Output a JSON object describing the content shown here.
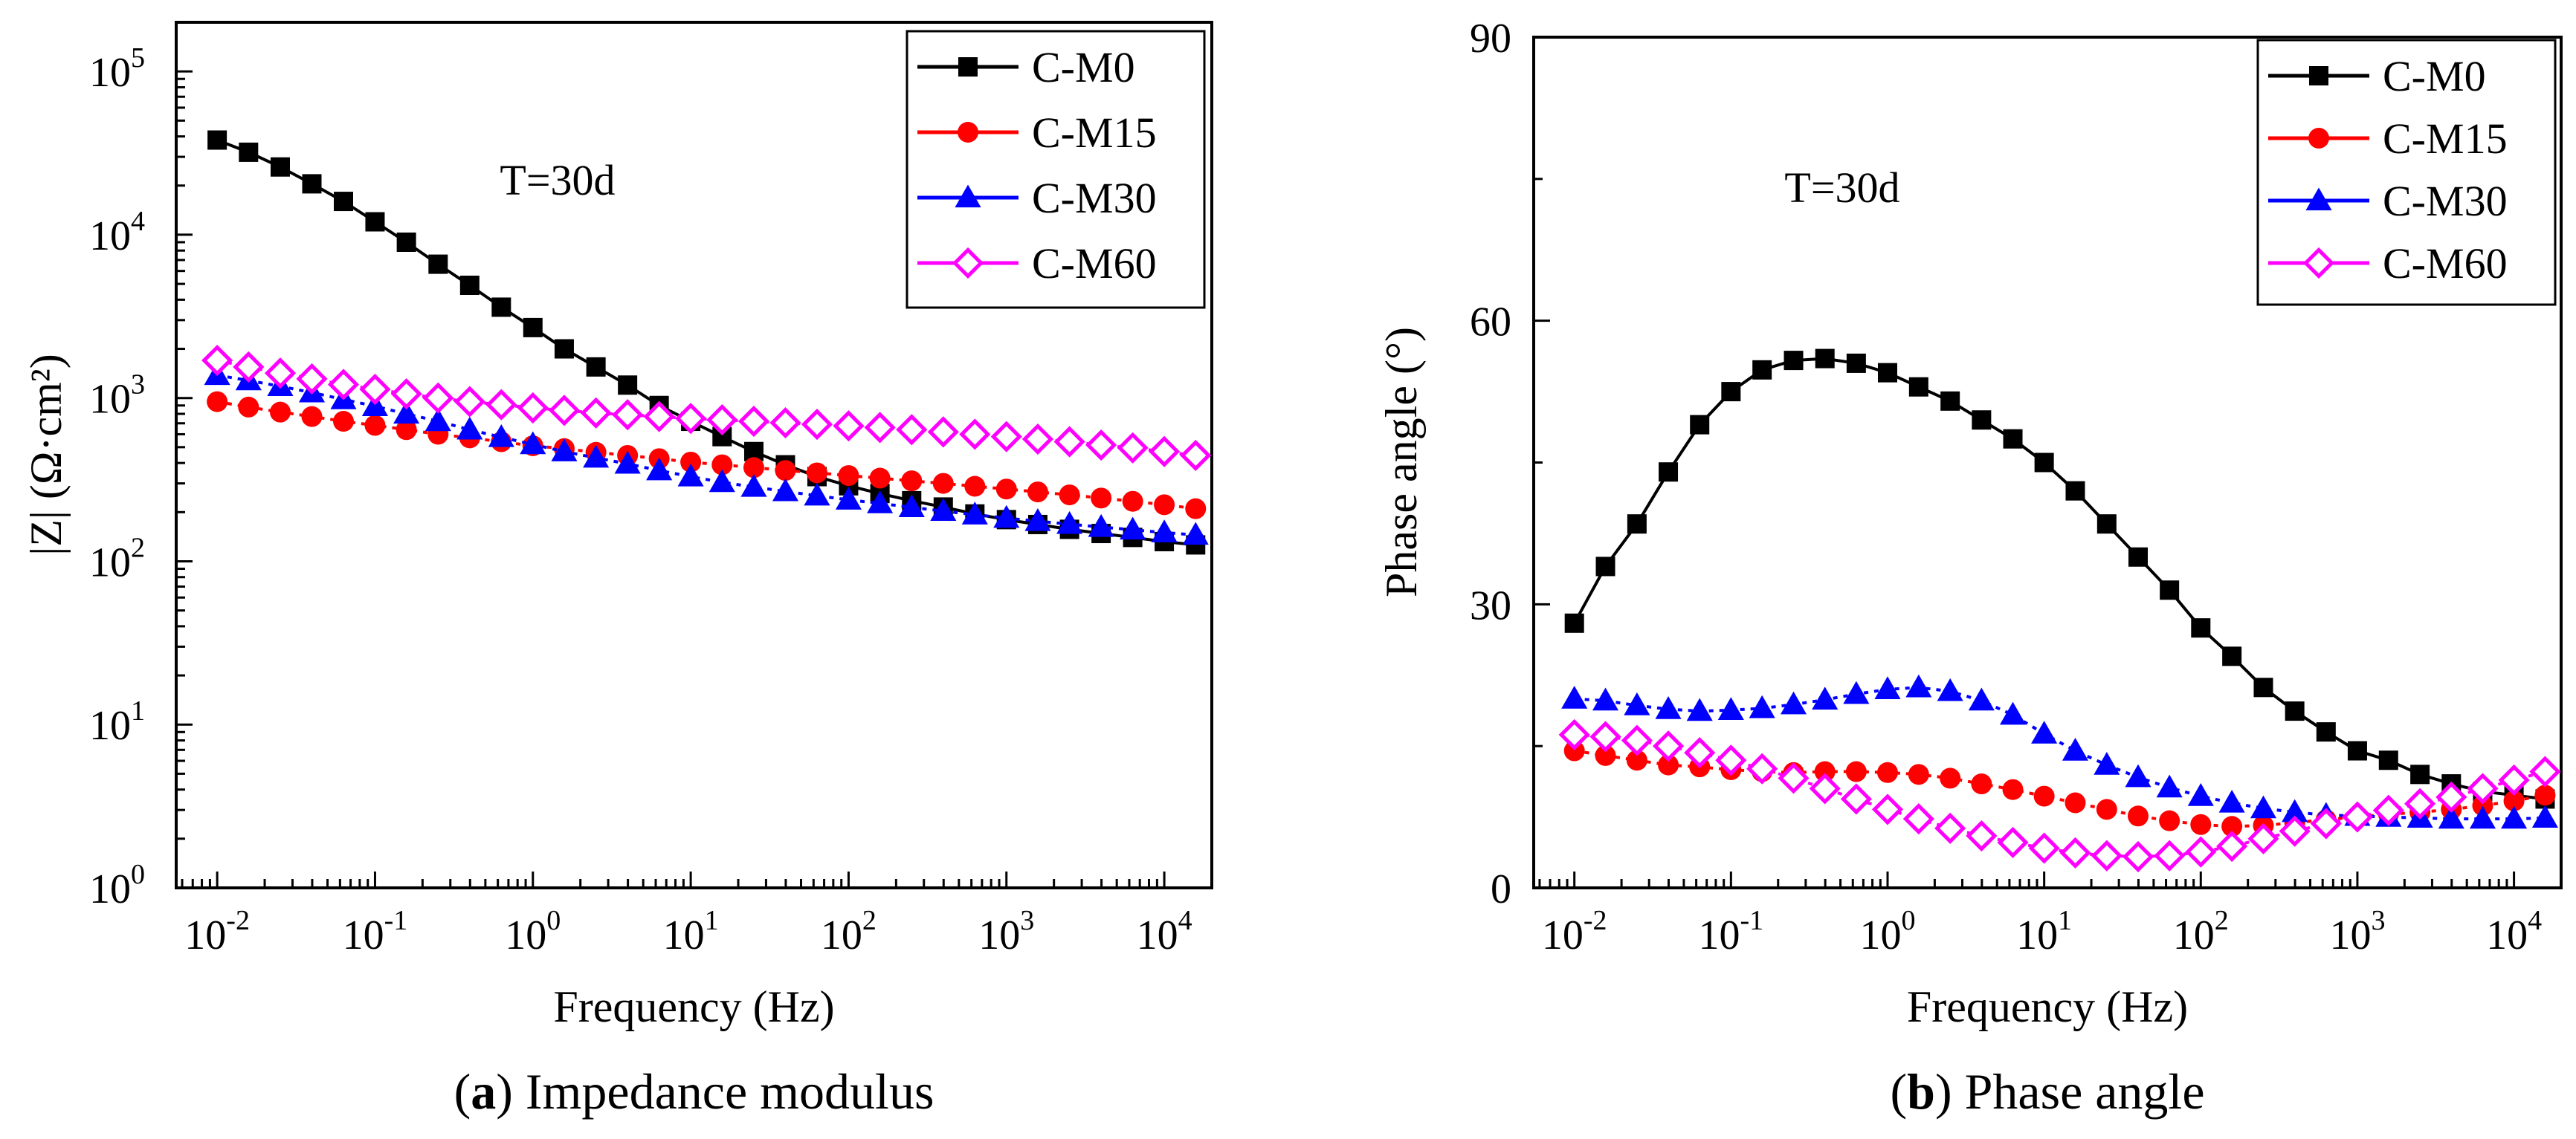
{
  "chart_data": [
    {
      "type": "line",
      "panel_id": "a",
      "caption_letter": "a",
      "caption_text": " Impedance modulus",
      "annotation": "T=30d",
      "xlabel": "Frequency (Hz)",
      "ylabel": "|Z| (Ω·cm²)",
      "x_scale": "log",
      "y_scale": "log",
      "xlim": [
        0.0055,
        20000
      ],
      "ylim": [
        1,
        200000
      ],
      "x_ticks": [
        {
          "value": 0.01,
          "base": "10",
          "exp": "-2"
        },
        {
          "value": 0.1,
          "base": "10",
          "exp": "-1"
        },
        {
          "value": 1,
          "base": "10",
          "exp": "0"
        },
        {
          "value": 10,
          "base": "10",
          "exp": "1"
        },
        {
          "value": 100,
          "base": "10",
          "exp": "2"
        },
        {
          "value": 1000,
          "base": "10",
          "exp": "3"
        },
        {
          "value": 10000,
          "base": "10",
          "exp": "4"
        }
      ],
      "y_ticks": [
        {
          "value": 1,
          "base": "10",
          "exp": "0"
        },
        {
          "value": 10,
          "base": "10",
          "exp": "1"
        },
        {
          "value": 100,
          "base": "10",
          "exp": "2"
        },
        {
          "value": 1000,
          "base": "10",
          "exp": "3"
        },
        {
          "value": 10000,
          "base": "10",
          "exp": "4"
        },
        {
          "value": 100000,
          "base": "10",
          "exp": "5"
        }
      ],
      "legend_position": "top-right",
      "series": [
        {
          "name": "C-M0",
          "color": "#000000",
          "marker": "square",
          "x": [
            0.01,
            0.0158,
            0.0251,
            0.0398,
            0.0631,
            0.1,
            0.158,
            0.251,
            0.398,
            0.631,
            1,
            1.58,
            2.51,
            3.98,
            6.31,
            10,
            15.8,
            25.1,
            39.8,
            63.1,
            100,
            158,
            251,
            398,
            631,
            1000,
            1580,
            2510,
            3980,
            6310,
            10000,
            15800
          ],
          "y": [
            38000,
            32000,
            26000,
            20500,
            16000,
            12000,
            9000,
            6600,
            4900,
            3600,
            2700,
            2000,
            1550,
            1200,
            900,
            720,
            580,
            470,
            390,
            330,
            290,
            260,
            235,
            215,
            195,
            180,
            168,
            157,
            148,
            140,
            132,
            126
          ]
        },
        {
          "name": "C-M15",
          "color": "#ff0000",
          "marker": "circle",
          "x": [
            0.01,
            0.0158,
            0.0251,
            0.0398,
            0.0631,
            0.1,
            0.158,
            0.251,
            0.398,
            0.631,
            1,
            1.58,
            2.51,
            3.98,
            6.31,
            10,
            15.8,
            25.1,
            39.8,
            63.1,
            100,
            158,
            251,
            398,
            631,
            1000,
            1580,
            2510,
            3980,
            6310,
            10000,
            15800
          ],
          "y": [
            950,
            880,
            820,
            770,
            720,
            680,
            640,
            600,
            570,
            540,
            510,
            490,
            465,
            445,
            425,
            405,
            390,
            375,
            360,
            348,
            335,
            323,
            311,
            300,
            288,
            277,
            266,
            255,
            244,
            233,
            222,
            210
          ]
        },
        {
          "name": "C-M30",
          "color": "#0000ff",
          "marker": "triangle",
          "x": [
            0.01,
            0.0158,
            0.0251,
            0.0398,
            0.0631,
            0.1,
            0.158,
            0.251,
            0.398,
            0.631,
            1,
            1.58,
            2.51,
            3.98,
            6.31,
            10,
            15.8,
            25.1,
            39.8,
            63.1,
            100,
            158,
            251,
            398,
            631,
            1000,
            1580,
            2510,
            3980,
            6310,
            10000,
            15800
          ],
          "y": [
            1380,
            1280,
            1180,
            1080,
            980,
            890,
            800,
            720,
            640,
            575,
            520,
            470,
            430,
            395,
            360,
            330,
            305,
            285,
            268,
            252,
            238,
            226,
            214,
            203,
            193,
            184,
            176,
            169,
            162,
            156,
            150,
            145
          ]
        },
        {
          "name": "C-M60",
          "color": "#ff00ff",
          "marker": "diamond",
          "x": [
            0.01,
            0.0158,
            0.0251,
            0.0398,
            0.0631,
            0.1,
            0.158,
            0.251,
            0.398,
            0.631,
            1,
            1.58,
            2.51,
            3.98,
            6.31,
            10,
            15.8,
            25.1,
            39.8,
            63.1,
            100,
            158,
            251,
            398,
            631,
            1000,
            1580,
            2510,
            3980,
            6310,
            10000,
            15800
          ],
          "y": [
            1700,
            1550,
            1420,
            1310,
            1210,
            1130,
            1060,
            1000,
            950,
            910,
            870,
            840,
            810,
            790,
            770,
            750,
            735,
            720,
            705,
            690,
            675,
            660,
            640,
            620,
            600,
            580,
            560,
            540,
            515,
            495,
            470,
            445
          ]
        }
      ]
    },
    {
      "type": "line",
      "panel_id": "b",
      "caption_letter": "b",
      "caption_text": " Phase angle",
      "annotation": "T=30d",
      "xlabel": "Frequency (Hz)",
      "ylabel": "Phase angle (°)",
      "x_scale": "log",
      "y_scale": "linear",
      "xlim": [
        0.0055,
        20000
      ],
      "ylim": [
        0,
        90
      ],
      "x_ticks": [
        {
          "value": 0.01,
          "base": "10",
          "exp": "-2"
        },
        {
          "value": 0.1,
          "base": "10",
          "exp": "-1"
        },
        {
          "value": 1,
          "base": "10",
          "exp": "0"
        },
        {
          "value": 10,
          "base": "10",
          "exp": "1"
        },
        {
          "value": 100,
          "base": "10",
          "exp": "2"
        },
        {
          "value": 1000,
          "base": "10",
          "exp": "3"
        },
        {
          "value": 10000,
          "base": "10",
          "exp": "4"
        }
      ],
      "y_ticks": [
        {
          "value": 0,
          "label": "0"
        },
        {
          "value": 30,
          "label": "30"
        },
        {
          "value": 60,
          "label": "60"
        },
        {
          "value": 90,
          "label": "90"
        }
      ],
      "legend_position": "top-right",
      "series": [
        {
          "name": "C-M0",
          "color": "#000000",
          "marker": "square",
          "x": [
            0.01,
            0.0158,
            0.0251,
            0.0398,
            0.0631,
            0.1,
            0.158,
            0.251,
            0.398,
            0.631,
            1,
            1.58,
            2.51,
            3.98,
            6.31,
            10,
            15.8,
            25.1,
            39.8,
            63.1,
            100,
            158,
            251,
            398,
            631,
            1000,
            1580,
            2510,
            3980,
            6310,
            10000,
            15800
          ],
          "y": [
            28,
            34,
            38.5,
            44,
            49,
            52.5,
            54.8,
            55.8,
            56,
            55.5,
            54.5,
            53,
            51.5,
            49.5,
            47.5,
            45,
            42,
            38.5,
            35,
            31.5,
            27.5,
            24.5,
            21.2,
            18.7,
            16.5,
            14.5,
            13.5,
            12,
            11,
            10.2,
            9.8,
            9.4
          ]
        },
        {
          "name": "C-M15",
          "color": "#ff0000",
          "marker": "circle",
          "x": [
            0.01,
            0.0158,
            0.0251,
            0.0398,
            0.0631,
            0.1,
            0.158,
            0.251,
            0.398,
            0.631,
            1,
            1.58,
            2.51,
            3.98,
            6.31,
            10,
            15.8,
            25.1,
            39.8,
            63.1,
            100,
            158,
            251,
            398,
            631,
            1000,
            1580,
            2510,
            3980,
            6310,
            10000,
            15800
          ],
          "y": [
            14.5,
            14,
            13.5,
            13,
            12.8,
            12.5,
            12.3,
            12.2,
            12.3,
            12.3,
            12.2,
            12,
            11.6,
            11,
            10.4,
            9.7,
            9,
            8.3,
            7.6,
            7.1,
            6.7,
            6.5,
            6.6,
            6.9,
            7.2,
            7.5,
            7.8,
            8,
            8.3,
            8.7,
            9.2,
            9.8
          ]
        },
        {
          "name": "C-M30",
          "color": "#0000ff",
          "marker": "triangle",
          "x": [
            0.01,
            0.0158,
            0.0251,
            0.0398,
            0.0631,
            0.1,
            0.158,
            0.251,
            0.398,
            0.631,
            1,
            1.58,
            2.51,
            3.98,
            6.31,
            10,
            15.8,
            25.1,
            39.8,
            63.1,
            100,
            158,
            251,
            398,
            631,
            1000,
            1580,
            2510,
            3980,
            6310,
            10000,
            15800
          ],
          "y": [
            20,
            19.8,
            19.3,
            18.9,
            18.7,
            18.8,
            19,
            19.4,
            19.9,
            20.5,
            21,
            21.2,
            20.8,
            19.8,
            18.3,
            16.3,
            14.5,
            13,
            11.7,
            10.6,
            9.7,
            9,
            8.4,
            8,
            7.7,
            7.6,
            7.5,
            7.4,
            7.3,
            7.3,
            7.3,
            7.4
          ]
        },
        {
          "name": "C-M60",
          "color": "#ff00ff",
          "marker": "diamond",
          "x": [
            0.01,
            0.0158,
            0.0251,
            0.0398,
            0.0631,
            0.1,
            0.158,
            0.251,
            0.398,
            0.631,
            1,
            1.58,
            2.51,
            3.98,
            6.31,
            10,
            15.8,
            25.1,
            39.8,
            63.1,
            100,
            158,
            251,
            398,
            631,
            1000,
            1580,
            2510,
            3980,
            6310,
            10000,
            15800
          ],
          "y": [
            16.2,
            16,
            15.6,
            15,
            14.3,
            13.5,
            12.6,
            11.6,
            10.5,
            9.4,
            8.3,
            7.3,
            6.3,
            5.5,
            4.8,
            4.2,
            3.7,
            3.4,
            3.3,
            3.4,
            3.8,
            4.4,
            5.2,
            6,
            6.8,
            7.5,
            8.2,
            8.9,
            9.6,
            10.5,
            11.4,
            12.3
          ]
        }
      ]
    }
  ]
}
